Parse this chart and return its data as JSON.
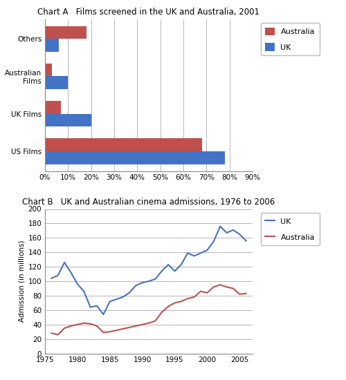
{
  "chart_a": {
    "title": "Chart A   Films screened in the UK and Australia, 2001",
    "categories": [
      "US Films",
      "UK Films",
      "Australian\nFilms",
      "Others"
    ],
    "australia": [
      0.68,
      0.07,
      0.03,
      0.18
    ],
    "uk": [
      0.78,
      0.2,
      0.1,
      0.06
    ],
    "australia_color": "#C0504D",
    "uk_color": "#4472C4",
    "xlim": [
      0,
      0.9
    ],
    "xticks": [
      0.0,
      0.1,
      0.2,
      0.3,
      0.4,
      0.5,
      0.6,
      0.7,
      0.8,
      0.9
    ],
    "xticklabels": [
      "0%",
      "10%",
      "20%",
      "30%",
      "40%",
      "50%",
      "60%",
      "70%",
      "80%",
      "90%"
    ]
  },
  "chart_b": {
    "title": "Chart B   UK and Australian cinema admissions, 1976 to 2006",
    "ylabel": "Admission (in millions)",
    "uk_color": "#4472C4",
    "australia_color": "#C0504D",
    "ylim": [
      0,
      200
    ],
    "yticks": [
      0,
      20,
      40,
      60,
      80,
      100,
      120,
      140,
      160,
      180,
      200
    ],
    "xlim": [
      1975,
      2007
    ],
    "xticks": [
      1975,
      1980,
      1985,
      1990,
      1995,
      2000,
      2005
    ],
    "uk_years": [
      1976,
      1977,
      1978,
      1979,
      1980,
      1981,
      1982,
      1983,
      1984,
      1985,
      1986,
      1987,
      1988,
      1989,
      1990,
      1991,
      1992,
      1993,
      1994,
      1995,
      1996,
      1997,
      1998,
      1999,
      2000,
      2001,
      2002,
      2003,
      2004,
      2005,
      2006
    ],
    "uk_values": [
      104,
      108,
      126,
      112,
      96,
      86,
      64,
      66,
      54,
      72,
      75,
      78,
      84,
      94,
      98,
      100,
      103,
      114,
      123,
      114,
      123,
      139,
      135,
      139,
      143,
      155,
      176,
      167,
      171,
      165,
      156
    ],
    "aus_years": [
      1976,
      1977,
      1978,
      1979,
      1980,
      1981,
      1982,
      1983,
      1984,
      1985,
      1986,
      1987,
      1988,
      1989,
      1990,
      1991,
      1992,
      1993,
      1994,
      1995,
      1996,
      1997,
      1998,
      1999,
      2000,
      2001,
      2002,
      2003,
      2004,
      2005,
      2006
    ],
    "aus_values": [
      28,
      26,
      35,
      38,
      40,
      42,
      41,
      38,
      29,
      30,
      32,
      34,
      36,
      38,
      40,
      42,
      45,
      57,
      65,
      70,
      72,
      76,
      78,
      86,
      84,
      92,
      95,
      92,
      90,
      82,
      83
    ]
  }
}
